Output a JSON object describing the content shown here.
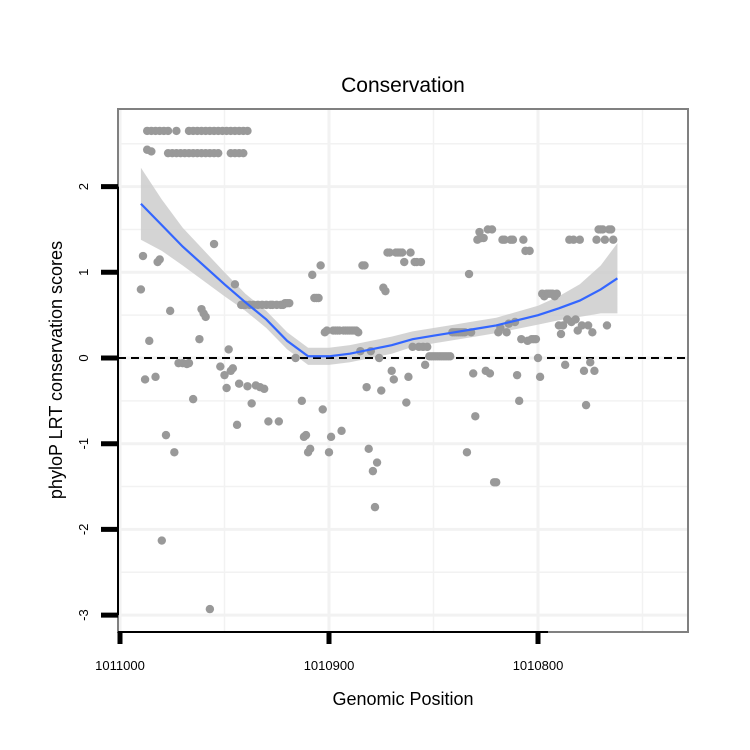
{
  "chart_data": {
    "type": "scatter",
    "title": "Conservation",
    "xlabel": "Genomic Position",
    "ylabel": "phyloP LRT conservation scores",
    "x_reversed": true,
    "xlim": [
      1011000,
      1010733
    ],
    "ylim": [
      -3.1,
      2.95
    ],
    "x_ticks": [
      1011000,
      1010900,
      1010800
    ],
    "x_tick_labels": [
      "1011000",
      "1010900",
      "1010800"
    ],
    "y_ticks": [
      -3,
      -2,
      -1,
      0,
      1,
      2
    ],
    "y_tick_labels": [
      "-3",
      "-2",
      "-1",
      "0",
      "1",
      "2"
    ],
    "reference_line": {
      "y": 0,
      "style": "dashed"
    },
    "grid": true,
    "colors": {
      "points": "#999999",
      "smooth_line": "#3366ff",
      "ribbon": "#cccccc",
      "panel_border": "#808080",
      "grid": "#f2f2f2"
    },
    "series": [
      {
        "kind": "points",
        "points": [
          [
            1010987,
            2.65
          ],
          [
            1010985,
            2.65
          ],
          [
            1010983,
            2.65
          ],
          [
            1010981,
            2.65
          ],
          [
            1010979,
            2.65
          ],
          [
            1010977,
            2.65
          ],
          [
            1010973,
            2.65
          ],
          [
            1010967,
            2.65
          ],
          [
            1010965,
            2.65
          ],
          [
            1010963,
            2.65
          ],
          [
            1010961,
            2.65
          ],
          [
            1010959,
            2.65
          ],
          [
            1010957,
            2.65
          ],
          [
            1010955,
            2.65
          ],
          [
            1010953,
            2.65
          ],
          [
            1010951,
            2.65
          ],
          [
            1010949,
            2.65
          ],
          [
            1010947,
            2.65
          ],
          [
            1010945,
            2.65
          ],
          [
            1010943,
            2.65
          ],
          [
            1010941,
            2.65
          ],
          [
            1010939,
            2.65
          ],
          [
            1010987,
            2.43
          ],
          [
            1010985,
            2.41
          ],
          [
            1010977,
            2.39
          ],
          [
            1010975,
            2.39
          ],
          [
            1010973,
            2.39
          ],
          [
            1010971,
            2.39
          ],
          [
            1010969,
            2.39
          ],
          [
            1010967,
            2.39
          ],
          [
            1010965,
            2.39
          ],
          [
            1010963,
            2.39
          ],
          [
            1010961,
            2.39
          ],
          [
            1010959,
            2.39
          ],
          [
            1010957,
            2.39
          ],
          [
            1010955,
            2.39
          ],
          [
            1010953,
            2.39
          ],
          [
            1010947,
            2.39
          ],
          [
            1010945,
            2.39
          ],
          [
            1010943,
            2.39
          ],
          [
            1010941,
            2.39
          ],
          [
            1010990,
            0.8
          ],
          [
            1010989,
            1.19
          ],
          [
            1010988,
            -0.25
          ],
          [
            1010986,
            0.2
          ],
          [
            1010983,
            -0.22
          ],
          [
            1010982,
            1.12
          ],
          [
            1010981,
            1.15
          ],
          [
            1010980,
            -2.13
          ],
          [
            1010978,
            -0.9
          ],
          [
            1010976,
            0.55
          ],
          [
            1010974,
            -1.1
          ],
          [
            1010972,
            -0.06
          ],
          [
            1010970,
            -0.06
          ],
          [
            1010968,
            -0.07
          ],
          [
            1010967,
            -0.06
          ],
          [
            1010965,
            -0.48
          ],
          [
            1010962,
            0.22
          ],
          [
            1010961,
            0.57
          ],
          [
            1010960,
            0.52
          ],
          [
            1010959,
            0.48
          ],
          [
            1010957,
            -2.93
          ],
          [
            1010955,
            1.33
          ],
          [
            1010952,
            -0.1
          ],
          [
            1010950,
            -0.2
          ],
          [
            1010949,
            -0.35
          ],
          [
            1010948,
            0.1
          ],
          [
            1010947,
            -0.15
          ],
          [
            1010946,
            -0.12
          ],
          [
            1010945,
            0.86
          ],
          [
            1010944,
            -0.78
          ],
          [
            1010943,
            -0.3
          ],
          [
            1010942,
            0.62
          ],
          [
            1010941,
            0.62
          ],
          [
            1010940,
            0.62
          ],
          [
            1010939,
            -0.33
          ],
          [
            1010938,
            0.62
          ],
          [
            1010937,
            -0.53
          ],
          [
            1010936,
            0.62
          ],
          [
            1010935,
            -0.32
          ],
          [
            1010934,
            0.62
          ],
          [
            1010933,
            -0.34
          ],
          [
            1010932,
            0.62
          ],
          [
            1010931,
            -0.36
          ],
          [
            1010930,
            0.62
          ],
          [
            1010929,
            -0.74
          ],
          [
            1010928,
            0.62
          ],
          [
            1010927,
            0.62
          ],
          [
            1010925,
            0.62
          ],
          [
            1010924,
            -0.74
          ],
          [
            1010923,
            0.62
          ],
          [
            1010922,
            0.62
          ],
          [
            1010921,
            0.64
          ],
          [
            1010920,
            0.64
          ],
          [
            1010919,
            0.64
          ],
          [
            1010916,
            0.0
          ],
          [
            1010913,
            -0.5
          ],
          [
            1010912,
            -0.92
          ],
          [
            1010911,
            -0.9
          ],
          [
            1010910,
            -1.1
          ],
          [
            1010909,
            -1.06
          ],
          [
            1010908,
            0.97
          ],
          [
            1010907,
            0.7
          ],
          [
            1010906,
            0.7
          ],
          [
            1010905,
            0.7
          ],
          [
            1010904,
            1.08
          ],
          [
            1010903,
            -0.6
          ],
          [
            1010902,
            0.3
          ],
          [
            1010901,
            0.32
          ],
          [
            1010900,
            -1.1
          ],
          [
            1010899,
            -0.92
          ],
          [
            1010898,
            0.32
          ],
          [
            1010897,
            0.32
          ],
          [
            1010896,
            0.32
          ],
          [
            1010895,
            0.32
          ],
          [
            1010894,
            -0.85
          ],
          [
            1010893,
            0.32
          ],
          [
            1010892,
            0.32
          ],
          [
            1010891,
            0.32
          ],
          [
            1010890,
            0.32
          ],
          [
            1010889,
            0.32
          ],
          [
            1010888,
            0.32
          ],
          [
            1010887,
            0.32
          ],
          [
            1010886,
            0.3
          ],
          [
            1010885,
            0.08
          ],
          [
            1010884,
            1.08
          ],
          [
            1010883,
            1.08
          ],
          [
            1010882,
            -0.34
          ],
          [
            1010881,
            -1.06
          ],
          [
            1010880,
            0.08
          ],
          [
            1010879,
            -1.32
          ],
          [
            1010878,
            -1.74
          ],
          [
            1010877,
            -1.22
          ],
          [
            1010876,
            0.0
          ],
          [
            1010875,
            -0.38
          ],
          [
            1010874,
            0.82
          ],
          [
            1010873,
            0.78
          ],
          [
            1010872,
            1.23
          ],
          [
            1010871,
            1.23
          ],
          [
            1010870,
            -0.15
          ],
          [
            1010869,
            -0.25
          ],
          [
            1010868,
            1.23
          ],
          [
            1010867,
            1.23
          ],
          [
            1010866,
            1.23
          ],
          [
            1010865,
            1.23
          ],
          [
            1010864,
            1.12
          ],
          [
            1010863,
            -0.52
          ],
          [
            1010862,
            -0.22
          ],
          [
            1010861,
            1.23
          ],
          [
            1010860,
            0.13
          ],
          [
            1010859,
            1.12
          ],
          [
            1010858,
            1.12
          ],
          [
            1010857,
            0.13
          ],
          [
            1010856,
            1.12
          ],
          [
            1010855,
            0.13
          ],
          [
            1010854,
            -0.08
          ],
          [
            1010853,
            0.13
          ],
          [
            1010852,
            0.02
          ],
          [
            1010851,
            0.02
          ],
          [
            1010850,
            0.02
          ],
          [
            1010849,
            0.02
          ],
          [
            1010848,
            0.02
          ],
          [
            1010847,
            0.02
          ],
          [
            1010846,
            0.02
          ],
          [
            1010845,
            0.02
          ],
          [
            1010844,
            0.02
          ],
          [
            1010843,
            0.02
          ],
          [
            1010842,
            0.02
          ],
          [
            1010841,
            0.3
          ],
          [
            1010840,
            0.3
          ],
          [
            1010839,
            0.3
          ],
          [
            1010838,
            0.3
          ],
          [
            1010837,
            0.3
          ],
          [
            1010836,
            0.3
          ],
          [
            1010835,
            0.3
          ],
          [
            1010834,
            -1.1
          ],
          [
            1010833,
            0.98
          ],
          [
            1010832,
            0.3
          ],
          [
            1010831,
            -0.18
          ],
          [
            1010830,
            -0.68
          ],
          [
            1010829,
            1.38
          ],
          [
            1010828,
            1.47
          ],
          [
            1010827,
            1.4
          ],
          [
            1010826,
            1.4
          ],
          [
            1010825,
            -0.15
          ],
          [
            1010824,
            1.5
          ],
          [
            1010823,
            -0.18
          ],
          [
            1010822,
            1.5
          ],
          [
            1010821,
            -1.45
          ],
          [
            1010820,
            -1.45
          ],
          [
            1010819,
            0.3
          ],
          [
            1010818,
            0.35
          ],
          [
            1010817,
            1.38
          ],
          [
            1010816,
            1.38
          ],
          [
            1010815,
            0.3
          ],
          [
            1010814,
            0.4
          ],
          [
            1010813,
            1.38
          ],
          [
            1010812,
            1.38
          ],
          [
            1010811,
            0.42
          ],
          [
            1010810,
            -0.2
          ],
          [
            1010809,
            -0.5
          ],
          [
            1010808,
            0.22
          ],
          [
            1010807,
            1.38
          ],
          [
            1010806,
            1.25
          ],
          [
            1010805,
            0.2
          ],
          [
            1010804,
            1.25
          ],
          [
            1010803,
            0.22
          ],
          [
            1010802,
            0.22
          ],
          [
            1010801,
            0.22
          ],
          [
            1010800,
            0.0
          ],
          [
            1010799,
            -0.22
          ],
          [
            1010798,
            0.75
          ],
          [
            1010797,
            0.72
          ],
          [
            1010796,
            0.75
          ],
          [
            1010795,
            0.75
          ],
          [
            1010794,
            0.75
          ],
          [
            1010793,
            0.75
          ],
          [
            1010792,
            0.72
          ],
          [
            1010791,
            0.75
          ],
          [
            1010790,
            0.38
          ],
          [
            1010789,
            0.28
          ],
          [
            1010788,
            0.38
          ],
          [
            1010787,
            -0.08
          ],
          [
            1010786,
            0.45
          ],
          [
            1010785,
            1.38
          ],
          [
            1010784,
            0.42
          ],
          [
            1010783,
            1.38
          ],
          [
            1010782,
            0.45
          ],
          [
            1010781,
            0.32
          ],
          [
            1010780,
            1.38
          ],
          [
            1010779,
            0.38
          ],
          [
            1010778,
            -0.15
          ],
          [
            1010777,
            -0.55
          ],
          [
            1010776,
            0.38
          ],
          [
            1010775,
            -0.05
          ],
          [
            1010774,
            0.3
          ],
          [
            1010773,
            -0.15
          ],
          [
            1010772,
            1.38
          ],
          [
            1010771,
            1.5
          ],
          [
            1010770,
            1.5
          ],
          [
            1010769,
            1.5
          ],
          [
            1010768,
            1.38
          ],
          [
            1010767,
            0.38
          ],
          [
            1010766,
            1.5
          ],
          [
            1010765,
            1.5
          ],
          [
            1010764,
            1.38
          ]
        ]
      },
      {
        "kind": "smooth",
        "x": [
          1010990,
          1010980,
          1010970,
          1010960,
          1010950,
          1010940,
          1010930,
          1010920,
          1010910,
          1010900,
          1010890,
          1010880,
          1010870,
          1010860,
          1010850,
          1010840,
          1010830,
          1010820,
          1010810,
          1010800,
          1010790,
          1010780,
          1010770,
          1010762
        ],
        "y": [
          1.8,
          1.55,
          1.3,
          1.08,
          0.86,
          0.65,
          0.45,
          0.2,
          0.02,
          0.02,
          0.05,
          0.1,
          0.15,
          0.22,
          0.26,
          0.3,
          0.34,
          0.38,
          0.44,
          0.5,
          0.58,
          0.67,
          0.8,
          0.93
        ],
        "ymin": [
          1.38,
          1.25,
          1.08,
          0.9,
          0.72,
          0.55,
          0.35,
          0.1,
          -0.08,
          -0.08,
          -0.05,
          0.0,
          0.05,
          0.13,
          0.17,
          0.21,
          0.25,
          0.29,
          0.34,
          0.39,
          0.44,
          0.48,
          0.52,
          0.52
        ],
        "ymax": [
          2.22,
          1.85,
          1.52,
          1.26,
          1.0,
          0.75,
          0.55,
          0.3,
          0.12,
          0.12,
          0.15,
          0.2,
          0.25,
          0.31,
          0.35,
          0.39,
          0.43,
          0.47,
          0.54,
          0.61,
          0.72,
          0.86,
          1.08,
          1.34
        ]
      }
    ]
  }
}
